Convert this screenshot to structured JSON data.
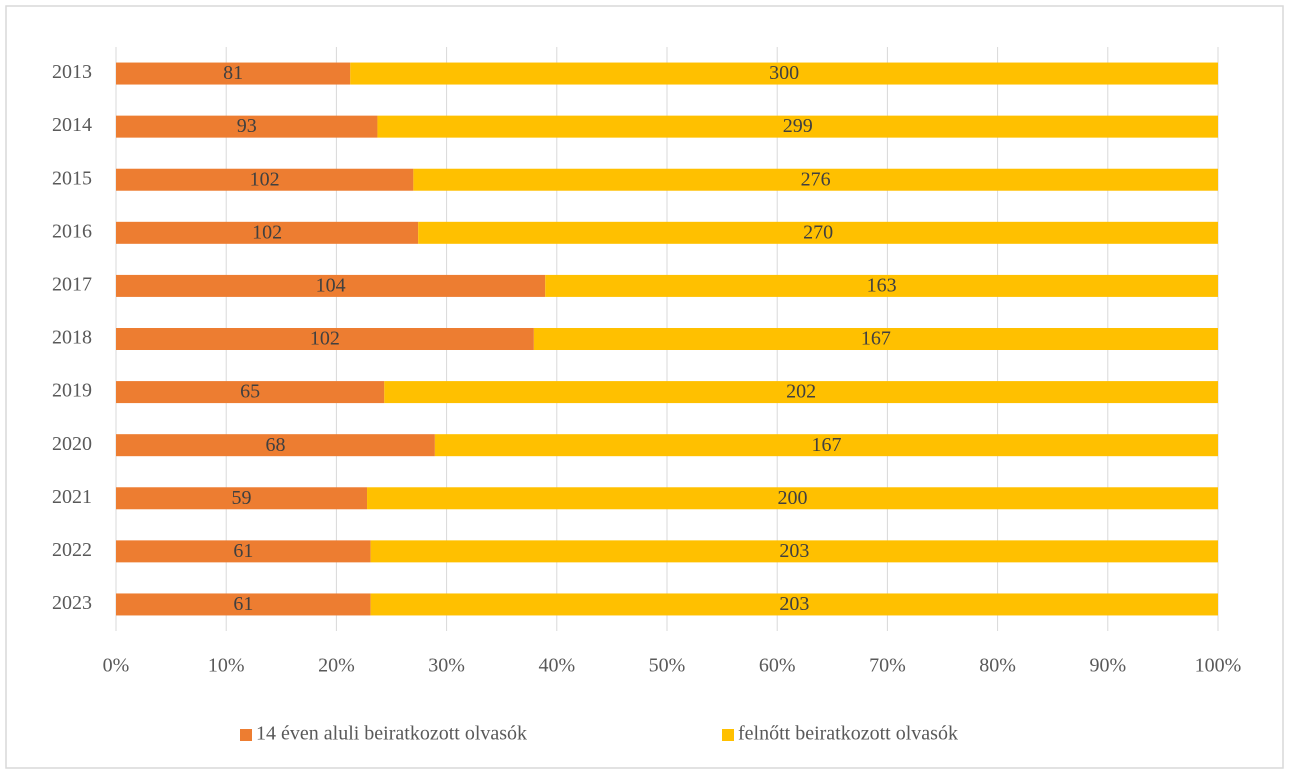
{
  "chart_data": {
    "type": "bar",
    "orientation": "horizontal",
    "stacking": "percent",
    "categories": [
      "2013",
      "2014",
      "2015",
      "2016",
      "2017",
      "2018",
      "2019",
      "2020",
      "2021",
      "2022",
      "2023"
    ],
    "series": [
      {
        "name": "14 éven aluli beiratkozott olvasók",
        "color": "#ed7d31",
        "values": [
          81,
          93,
          102,
          102,
          104,
          102,
          65,
          68,
          59,
          61,
          61
        ]
      },
      {
        "name": "felnőtt beiratkozott olvasók",
        "color": "#ffc000",
        "values": [
          300,
          299,
          276,
          270,
          163,
          167,
          202,
          167,
          200,
          203,
          203
        ]
      }
    ],
    "xlim": [
      0,
      100
    ],
    "xticks": [
      {
        "value": 0,
        "label": "0%"
      },
      {
        "value": 10,
        "label": "10%"
      },
      {
        "value": 20,
        "label": "20%"
      },
      {
        "value": 30,
        "label": "30%"
      },
      {
        "value": 40,
        "label": "40%"
      },
      {
        "value": 50,
        "label": "50%"
      },
      {
        "value": 60,
        "label": "60%"
      },
      {
        "value": 70,
        "label": "70%"
      },
      {
        "value": 80,
        "label": "80%"
      },
      {
        "value": 90,
        "label": "90%"
      },
      {
        "value": 100,
        "label": "100%"
      }
    ],
    "grid": true,
    "legend": "bottom"
  }
}
